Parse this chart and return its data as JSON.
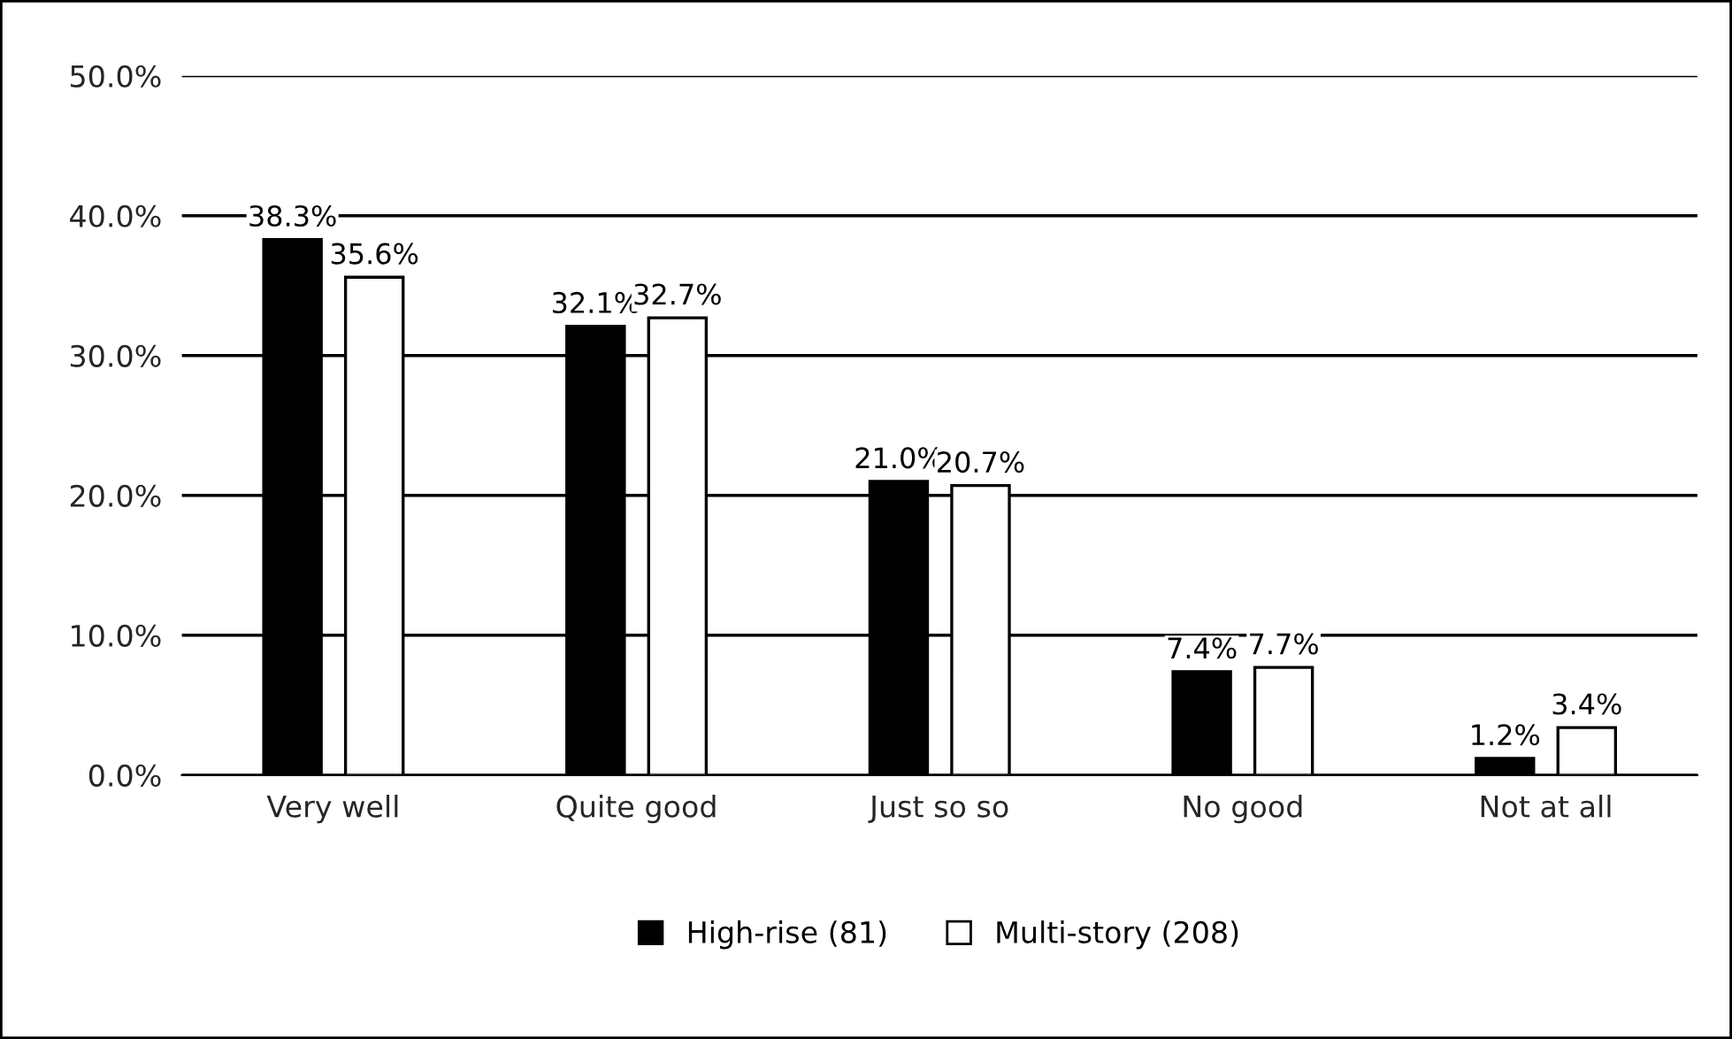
{
  "chart_data": {
    "type": "bar",
    "categories": [
      "Very well",
      "Quite good",
      "Just so so",
      "No good",
      "Not at all"
    ],
    "series": [
      {
        "name": "High-rise (81)",
        "color": "#000000",
        "values": [
          38.3,
          32.1,
          21.0,
          7.4,
          1.2
        ],
        "value_labels": [
          "38.3%",
          "32.1%",
          "21.0%",
          "7.4%",
          "1.2%"
        ]
      },
      {
        "name": "Multi-story (208)",
        "color": "#ffffff",
        "values": [
          35.6,
          32.7,
          20.7,
          7.7,
          3.4
        ],
        "value_labels": [
          "35.6%",
          "32.7%",
          "20.7%",
          "7.7%",
          "3.4%"
        ]
      }
    ],
    "ylim": [
      0,
      50
    ],
    "yticks": [
      {
        "value": 0,
        "label": "0.0%"
      },
      {
        "value": 10,
        "label": "10.0%"
      },
      {
        "value": 20,
        "label": "20.0%"
      },
      {
        "value": 30,
        "label": "30.0%"
      },
      {
        "value": 40,
        "label": "40.0%"
      },
      {
        "value": 50,
        "label": "50.0%"
      }
    ],
    "grid": "y",
    "legend": "bottom"
  }
}
